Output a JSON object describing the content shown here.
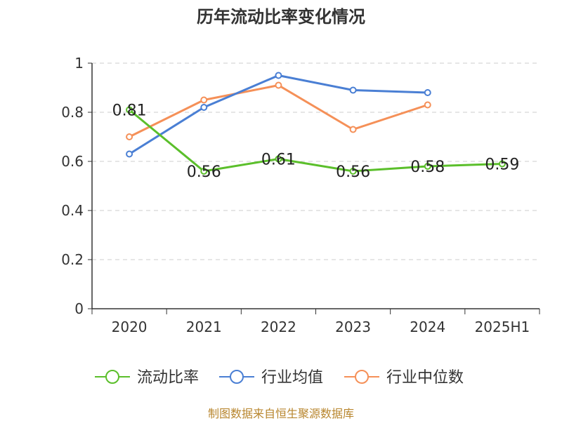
{
  "chart_data": {
    "type": "line",
    "title": "历年流动比率变化情况",
    "categories": [
      "2020",
      "2021",
      "2022",
      "2023",
      "2024",
      "2025H1"
    ],
    "y_ticks": [
      "0",
      "0.2",
      "0.4",
      "0.6",
      "0.8",
      "1"
    ],
    "ylim": [
      0,
      1
    ],
    "grid": "horizontal dashed",
    "legend_position": "bottom",
    "series": [
      {
        "name": "流动比率",
        "color": "#5bbf2b",
        "values": [
          0.81,
          0.56,
          0.61,
          0.56,
          0.58,
          0.59
        ],
        "labels": [
          "0.81",
          "0.56",
          "0.61",
          "0.56",
          "0.58",
          "0.59"
        ]
      },
      {
        "name": "行业均值",
        "color": "#4a7fd4",
        "values": [
          0.63,
          0.82,
          0.95,
          0.89,
          0.88,
          null
        ]
      },
      {
        "name": "行业中位数",
        "color": "#f59058",
        "values": [
          0.7,
          0.85,
          0.91,
          0.73,
          0.83,
          null
        ]
      }
    ],
    "source": "制图数据来自恒生聚源数据库"
  }
}
